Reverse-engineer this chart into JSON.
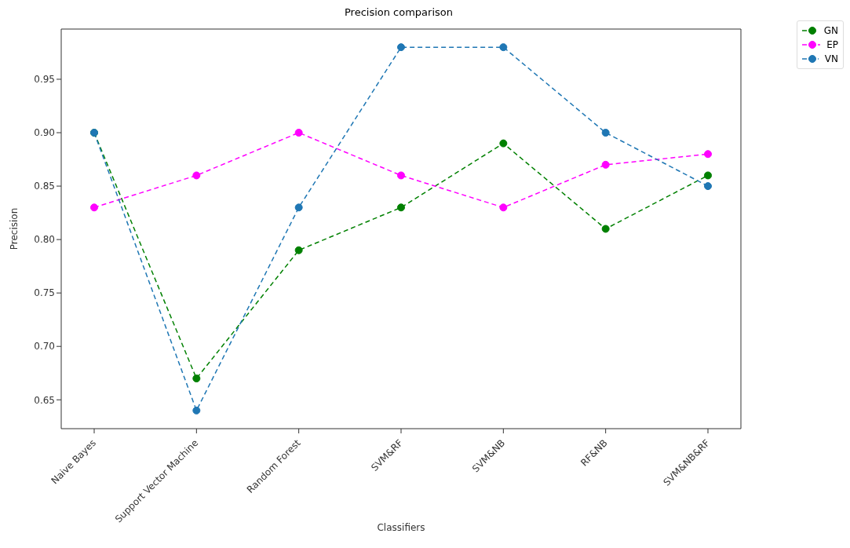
{
  "chart_data": {
    "type": "line",
    "title": "Precision comparison",
    "xlabel": "Classifiers",
    "ylabel": "Precision",
    "categories": [
      "Naive Bayes",
      "Support Vector Machine",
      "Random Forest",
      "SVM&RF",
      "SVM&NB",
      "RF&NB",
      "SVM&NB&RF"
    ],
    "series": [
      {
        "name": "GN",
        "color": "#008000",
        "values": [
          0.9,
          0.67,
          0.79,
          0.83,
          0.89,
          0.81,
          0.86
        ]
      },
      {
        "name": "EP",
        "color": "#ff00ff",
        "values": [
          0.83,
          0.86,
          0.9,
          0.86,
          0.83,
          0.87,
          0.88
        ]
      },
      {
        "name": "VN",
        "color": "#1f77b4",
        "values": [
          0.9,
          0.64,
          0.83,
          0.98,
          0.98,
          0.9,
          0.85
        ]
      }
    ],
    "ylim": [
      0.623,
      0.997
    ],
    "yticks": [
      {
        "value": 0.65,
        "label": "0.65"
      },
      {
        "value": 0.7,
        "label": "0.70"
      },
      {
        "value": 0.75,
        "label": "0.75"
      },
      {
        "value": 0.8,
        "label": "0.80"
      },
      {
        "value": 0.85,
        "label": "0.85"
      },
      {
        "value": 0.9,
        "label": "0.90"
      },
      {
        "value": 0.95,
        "label": "0.95"
      }
    ],
    "grid": false,
    "legend": "top right",
    "marker": "circle",
    "line_style": "dashed"
  }
}
